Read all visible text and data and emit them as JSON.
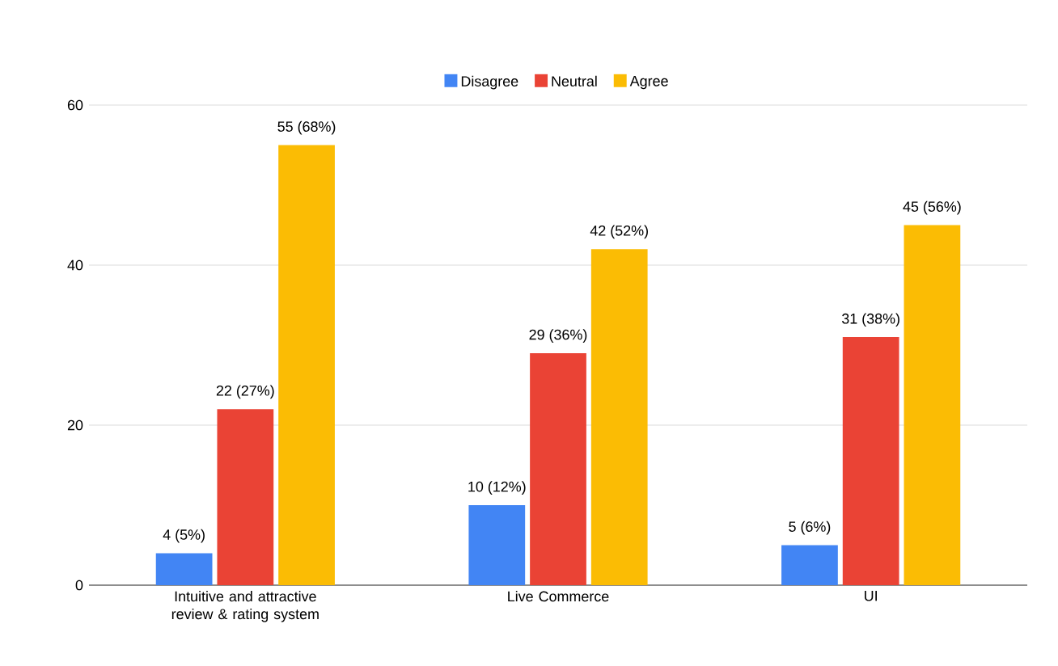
{
  "chart_data": {
    "type": "bar",
    "categories": [
      "Intuitive and attractive review & rating system",
      "Live Commerce",
      "UI"
    ],
    "series": [
      {
        "name": "Disagree",
        "color": "#4285f4",
        "values": [
          4,
          10,
          5
        ],
        "value_labels": [
          "4 (5%)",
          "10 (12%)",
          "5 (6%)"
        ]
      },
      {
        "name": "Neutral",
        "color": "#ea4335",
        "values": [
          22,
          29,
          31
        ],
        "value_labels": [
          "22 (27%)",
          "29 (36%)",
          "31 (38%)"
        ]
      },
      {
        "name": "Agree",
        "color": "#fbbc04",
        "values": [
          55,
          42,
          45
        ],
        "value_labels": [
          "55 (68%)",
          "42 (52%)",
          "45 (56%)"
        ]
      }
    ],
    "ylim": [
      0,
      60
    ],
    "yticks": [
      0,
      20,
      40,
      60
    ],
    "grid": "y",
    "legend": "top"
  }
}
